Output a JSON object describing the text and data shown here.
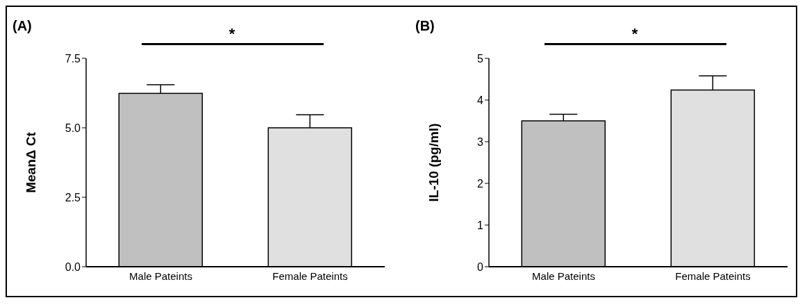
{
  "chart_data": [
    {
      "type": "bar",
      "title": "(A)",
      "ylabel": "MeanΔ Ct",
      "categories": [
        "Male Pateints",
        "Female Pateints"
      ],
      "values": [
        6.24,
        5.0
      ],
      "errors": [
        0.31,
        0.47
      ],
      "colors": [
        "#c0c0c0",
        "#e0e0e0"
      ],
      "ylim": [
        0,
        7.5
      ],
      "yticks": [
        {
          "value": 0,
          "label": "0.0"
        },
        2.5,
        {
          "value": 5,
          "label": "5.0"
        },
        7.5
      ],
      "annotations": [
        "*"
      ]
    },
    {
      "type": "bar",
      "title": "(B)",
      "ylabel": "IL-10 (pg/ml)",
      "categories": [
        "Male Pateints",
        "Female Pateints"
      ],
      "values": [
        3.5,
        4.24
      ],
      "errors": [
        0.16,
        0.34
      ],
      "colors": [
        "#c0c0c0",
        "#e0e0e0"
      ],
      "ylim": [
        0,
        5
      ],
      "yticks": [
        0,
        1,
        2,
        3,
        4,
        5
      ],
      "annotations": [
        "*"
      ]
    }
  ]
}
